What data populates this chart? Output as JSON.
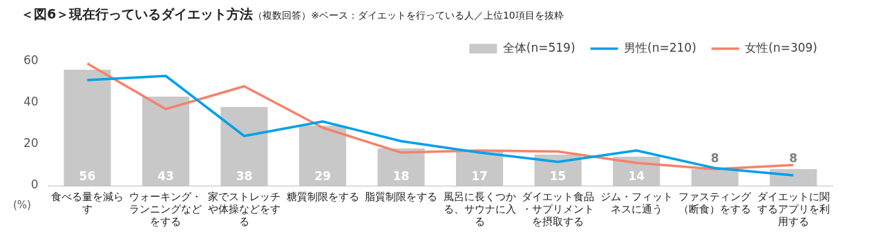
{
  "chart_data": {
    "type": "bar",
    "title": "＜図6＞現在行っているダイエット方法",
    "subtitle": "（複数回答）※ベース：ダイエットを行っている人／上位10項目を抜粋",
    "ylabel": "(%)",
    "categories": [
      "食べる量を減らす",
      "ウォーキング・ランニングなどをする",
      "家でストレッチや体操などをする",
      "糖質制限をする",
      "脂質制限をする",
      "風呂に長くつかる、サウナに入る",
      "ダイエット食品・サプリメントを摂取する",
      "ジム・フィットネスに通う",
      "ファスティング（断食）をする",
      "ダイエットに関するアプリを利用する"
    ],
    "series": [
      {
        "name": "全体(n=519)",
        "color": "#c8c8c8",
        "values": [
          56,
          43,
          38,
          29,
          18,
          17,
          15,
          14,
          8,
          8
        ],
        "value_labels": [
          "56",
          "43",
          "38",
          "29",
          "18",
          "17",
          "15",
          "14",
          "8",
          "8"
        ]
      },
      {
        "name": "男性(n=210)",
        "type": "line",
        "color": "#00a0e9",
        "values": [
          51,
          53,
          24,
          31,
          21.5,
          16,
          11.5,
          17,
          8.5,
          5
        ]
      },
      {
        "name": "女性(n=309)",
        "type": "line",
        "color": "#f4836b",
        "values": [
          59,
          37,
          48,
          28,
          16,
          17,
          16.5,
          11,
          8,
          10
        ]
      }
    ],
    "ylim": [
      0,
      60
    ],
    "yticks": [
      0,
      20,
      40,
      60
    ],
    "grid": false,
    "legend": "top right",
    "marker": "none",
    "line_style": "solid"
  }
}
